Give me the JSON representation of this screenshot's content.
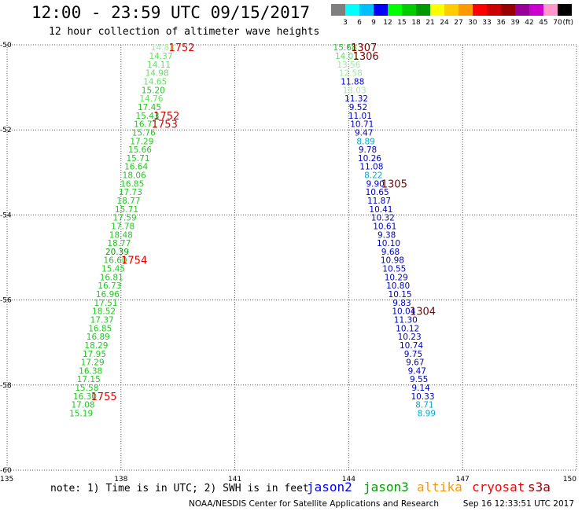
{
  "title": "12:00 - 23:59 UTC 09/15/2017",
  "subtitle": "12 hour collection of altimeter wave heights",
  "footer": {
    "note": "note: 1) Time is in UTC; 2) SWH is in feet",
    "credit": "NOAA/NESDIS Center for Satellite Applications and Research",
    "timestamp": "Sep 16 12:33:51 UTC 2017"
  },
  "colors": {
    "green_dark": "#00a000",
    "green_mid": "#22c822",
    "green_light": "#66e066",
    "green_pale": "#99ee99",
    "navy": "#0000c0",
    "cyan": "#00aacc",
    "time_red": "#e00000",
    "time_dark": "#800000"
  },
  "legend": {
    "unit": "(ft)",
    "bins": [
      {
        "label": "3",
        "color": "#7f7f7f"
      },
      {
        "label": "6",
        "color": "#00ffff"
      },
      {
        "label": "9",
        "color": "#00bfff"
      },
      {
        "label": "12",
        "color": "#0000ff"
      },
      {
        "label": "15",
        "color": "#00ff00"
      },
      {
        "label": "18",
        "color": "#00cc00"
      },
      {
        "label": "21",
        "color": "#009900"
      },
      {
        "label": "24",
        "color": "#ffff00"
      },
      {
        "label": "27",
        "color": "#ffcc00"
      },
      {
        "label": "30",
        "color": "#ff9900"
      },
      {
        "label": "33",
        "color": "#ff0000"
      },
      {
        "label": "36",
        "color": "#cc0000"
      },
      {
        "label": "39",
        "color": "#990000"
      },
      {
        "label": "42",
        "color": "#990099"
      },
      {
        "label": "45",
        "color": "#cc00cc"
      },
      {
        "label": "70",
        "color": "#ff99cc"
      },
      {
        "label": "",
        "color": "#000000"
      }
    ]
  },
  "satellites": [
    {
      "name": "jason2",
      "color": "#0000ff"
    },
    {
      "name": "jason3",
      "color": "#00a000"
    },
    {
      "name": "altika",
      "color": "#ff9900"
    },
    {
      "name": "cryosat",
      "color": "#ff0000"
    },
    {
      "name": "s3a",
      "color": "#990000"
    }
  ],
  "chart_data": {
    "type": "scatter",
    "xlim": [
      135,
      150
    ],
    "ylim": [
      -60,
      -50
    ],
    "x_ticks": [
      135,
      138,
      141,
      144,
      147,
      150
    ],
    "y_ticks": [
      -50,
      -52,
      -54,
      -56,
      -58,
      -60
    ],
    "grid": "dotted",
    "series": [
      {
        "satellite": "jason3",
        "points": [
          {
            "lat": -50.06,
            "lon": 139.1,
            "v": "14.88",
            "c": "green_pale"
          },
          {
            "lat": -50.26,
            "lon": 139.05,
            "v": "14.37",
            "c": "green_light"
          },
          {
            "lat": -50.46,
            "lon": 139.0,
            "v": "14.11",
            "c": "green_light"
          },
          {
            "lat": -50.66,
            "lon": 138.95,
            "v": "14.98",
            "c": "green_light"
          },
          {
            "lat": -50.86,
            "lon": 138.9,
            "v": "14.65",
            "c": "green_light"
          },
          {
            "lat": -51.06,
            "lon": 138.85,
            "v": "15.20",
            "c": "green_mid"
          },
          {
            "lat": -51.26,
            "lon": 138.8,
            "v": "14.76",
            "c": "green_light"
          },
          {
            "lat": -51.46,
            "lon": 138.75,
            "v": "17.45",
            "c": "green_mid"
          },
          {
            "lat": -51.66,
            "lon": 138.7,
            "v": "15.43",
            "c": "green_mid"
          },
          {
            "lat": -51.86,
            "lon": 138.65,
            "v": "16.71",
            "c": "green_mid"
          },
          {
            "lat": -52.06,
            "lon": 138.6,
            "v": "15.76",
            "c": "green_mid"
          },
          {
            "lat": -52.26,
            "lon": 138.55,
            "v": "17.29",
            "c": "green_mid"
          },
          {
            "lat": -52.46,
            "lon": 138.5,
            "v": "15.66",
            "c": "green_mid"
          },
          {
            "lat": -52.66,
            "lon": 138.45,
            "v": "15.71",
            "c": "green_mid"
          },
          {
            "lat": -52.86,
            "lon": 138.4,
            "v": "16.64",
            "c": "green_mid"
          },
          {
            "lat": -53.06,
            "lon": 138.35,
            "v": "18.06",
            "c": "green_mid"
          },
          {
            "lat": -53.26,
            "lon": 138.3,
            "v": "16.85",
            "c": "green_mid"
          },
          {
            "lat": -53.46,
            "lon": 138.25,
            "v": "17.73",
            "c": "green_mid"
          },
          {
            "lat": -53.66,
            "lon": 138.2,
            "v": "18.77",
            "c": "green_mid"
          },
          {
            "lat": -53.86,
            "lon": 138.15,
            "v": "15.71",
            "c": "green_mid"
          },
          {
            "lat": -54.06,
            "lon": 138.1,
            "v": "17.59",
            "c": "green_mid"
          },
          {
            "lat": -54.26,
            "lon": 138.05,
            "v": "17.78",
            "c": "green_mid"
          },
          {
            "lat": -54.46,
            "lon": 138.0,
            "v": "18.48",
            "c": "green_mid"
          },
          {
            "lat": -54.66,
            "lon": 137.95,
            "v": "18.77",
            "c": "green_mid"
          },
          {
            "lat": -54.86,
            "lon": 137.9,
            "v": "20.39",
            "c": "green_dark"
          },
          {
            "lat": -55.06,
            "lon": 137.85,
            "v": "16.60",
            "c": "green_mid"
          },
          {
            "lat": -55.26,
            "lon": 137.8,
            "v": "15.45",
            "c": "green_mid"
          },
          {
            "lat": -55.46,
            "lon": 137.75,
            "v": "16.81",
            "c": "green_mid"
          },
          {
            "lat": -55.66,
            "lon": 137.7,
            "v": "16.73",
            "c": "green_mid"
          },
          {
            "lat": -55.86,
            "lon": 137.65,
            "v": "16.96",
            "c": "green_mid"
          },
          {
            "lat": -56.06,
            "lon": 137.6,
            "v": "17.51",
            "c": "green_mid"
          },
          {
            "lat": -56.26,
            "lon": 137.55,
            "v": "18.52",
            "c": "green_mid"
          },
          {
            "lat": -56.46,
            "lon": 137.5,
            "v": "17.37",
            "c": "green_mid"
          },
          {
            "lat": -56.66,
            "lon": 137.45,
            "v": "16.85",
            "c": "green_mid"
          },
          {
            "lat": -56.86,
            "lon": 137.4,
            "v": "16.89",
            "c": "green_mid"
          },
          {
            "lat": -57.06,
            "lon": 137.35,
            "v": "18.29",
            "c": "green_mid"
          },
          {
            "lat": -57.26,
            "lon": 137.3,
            "v": "17.95",
            "c": "green_mid"
          },
          {
            "lat": -57.46,
            "lon": 137.25,
            "v": "17.29",
            "c": "green_mid"
          },
          {
            "lat": -57.66,
            "lon": 137.2,
            "v": "16.38",
            "c": "green_mid"
          },
          {
            "lat": -57.86,
            "lon": 137.15,
            "v": "17.15",
            "c": "green_mid"
          },
          {
            "lat": -58.06,
            "lon": 137.1,
            "v": "15.58",
            "c": "green_mid"
          },
          {
            "lat": -58.26,
            "lon": 137.05,
            "v": "16.30",
            "c": "green_mid"
          },
          {
            "lat": -58.46,
            "lon": 137.0,
            "v": "17.08",
            "c": "green_mid"
          },
          {
            "lat": -58.66,
            "lon": 136.95,
            "v": "15.19",
            "c": "green_mid"
          }
        ]
      },
      {
        "satellite": "jason2",
        "points": [
          {
            "lat": -50.06,
            "lon": 143.9,
            "v": "15.68",
            "c": "green_mid"
          },
          {
            "lat": -50.26,
            "lon": 143.95,
            "v": "14.01",
            "c": "green_light"
          },
          {
            "lat": -50.46,
            "lon": 144.0,
            "v": "13.56",
            "c": "green_pale"
          },
          {
            "lat": -50.66,
            "lon": 144.05,
            "v": "12.58",
            "c": "green_pale"
          },
          {
            "lat": -50.86,
            "lon": 144.1,
            "v": "11.88",
            "c": "navy"
          },
          {
            "lat": -51.06,
            "lon": 144.15,
            "v": "13.03",
            "c": "green_pale"
          },
          {
            "lat": -51.26,
            "lon": 144.2,
            "v": "11.32",
            "c": "navy"
          },
          {
            "lat": -51.46,
            "lon": 144.25,
            "v": "9.52",
            "c": "navy"
          },
          {
            "lat": -51.66,
            "lon": 144.3,
            "v": "11.01",
            "c": "navy"
          },
          {
            "lat": -51.86,
            "lon": 144.35,
            "v": "10.71",
            "c": "navy"
          },
          {
            "lat": -52.06,
            "lon": 144.4,
            "v": "9.47",
            "c": "navy"
          },
          {
            "lat": -52.26,
            "lon": 144.45,
            "v": "8.89",
            "c": "cyan"
          },
          {
            "lat": -52.46,
            "lon": 144.5,
            "v": "9.78",
            "c": "navy"
          },
          {
            "lat": -52.66,
            "lon": 144.55,
            "v": "10.26",
            "c": "navy"
          },
          {
            "lat": -52.86,
            "lon": 144.6,
            "v": "11.08",
            "c": "navy"
          },
          {
            "lat": -53.06,
            "lon": 144.65,
            "v": "8.22",
            "c": "cyan"
          },
          {
            "lat": -53.26,
            "lon": 144.7,
            "v": "9.90",
            "c": "navy"
          },
          {
            "lat": -53.46,
            "lon": 144.75,
            "v": "10.65",
            "c": "navy"
          },
          {
            "lat": -53.66,
            "lon": 144.8,
            "v": "11.87",
            "c": "navy"
          },
          {
            "lat": -53.86,
            "lon": 144.85,
            "v": "10.41",
            "c": "navy"
          },
          {
            "lat": -54.06,
            "lon": 144.9,
            "v": "10.32",
            "c": "navy"
          },
          {
            "lat": -54.26,
            "lon": 144.95,
            "v": "10.61",
            "c": "navy"
          },
          {
            "lat": -54.46,
            "lon": 145.0,
            "v": "9.38",
            "c": "navy"
          },
          {
            "lat": -54.66,
            "lon": 145.05,
            "v": "10.10",
            "c": "navy"
          },
          {
            "lat": -54.86,
            "lon": 145.1,
            "v": "9.68",
            "c": "navy"
          },
          {
            "lat": -55.06,
            "lon": 145.15,
            "v": "10.98",
            "c": "navy"
          },
          {
            "lat": -55.26,
            "lon": 145.2,
            "v": "10.55",
            "c": "navy"
          },
          {
            "lat": -55.46,
            "lon": 145.25,
            "v": "10.29",
            "c": "navy"
          },
          {
            "lat": -55.66,
            "lon": 145.3,
            "v": "10.80",
            "c": "navy"
          },
          {
            "lat": -55.86,
            "lon": 145.35,
            "v": "10.15",
            "c": "navy"
          },
          {
            "lat": -56.06,
            "lon": 145.4,
            "v": "9.83",
            "c": "navy"
          },
          {
            "lat": -56.26,
            "lon": 145.45,
            "v": "10.04",
            "c": "navy"
          },
          {
            "lat": -56.46,
            "lon": 145.5,
            "v": "11.30",
            "c": "navy"
          },
          {
            "lat": -56.66,
            "lon": 145.55,
            "v": "10.12",
            "c": "navy"
          },
          {
            "lat": -56.86,
            "lon": 145.6,
            "v": "10.23",
            "c": "navy"
          },
          {
            "lat": -57.06,
            "lon": 145.65,
            "v": "10.74",
            "c": "navy"
          },
          {
            "lat": -57.26,
            "lon": 145.7,
            "v": "9.75",
            "c": "navy"
          },
          {
            "lat": -57.46,
            "lon": 145.75,
            "v": "9.67",
            "c": "navy"
          },
          {
            "lat": -57.66,
            "lon": 145.8,
            "v": "9.47",
            "c": "navy"
          },
          {
            "lat": -57.86,
            "lon": 145.85,
            "v": "9.55",
            "c": "navy"
          },
          {
            "lat": -58.06,
            "lon": 145.9,
            "v": "9.14",
            "c": "navy"
          },
          {
            "lat": -58.26,
            "lon": 145.95,
            "v": "10.33",
            "c": "navy"
          },
          {
            "lat": -58.46,
            "lon": 146.0,
            "v": "8.71",
            "c": "cyan"
          },
          {
            "lat": -58.66,
            "lon": 146.05,
            "v": "8.99",
            "c": "cyan"
          }
        ]
      }
    ],
    "time_labels": [
      {
        "lat": -50.06,
        "lon": 139.6,
        "v": "1752",
        "c": "time_red"
      },
      {
        "lat": -51.66,
        "lon": 139.2,
        "v": "1752",
        "c": "time_red"
      },
      {
        "lat": -51.86,
        "lon": 139.15,
        "v": "1753",
        "c": "time_red"
      },
      {
        "lat": -55.06,
        "lon": 138.35,
        "v": "1754",
        "c": "time_red"
      },
      {
        "lat": -58.26,
        "lon": 137.55,
        "v": "1755",
        "c": "time_red"
      },
      {
        "lat": -50.06,
        "lon": 144.4,
        "v": "1307",
        "c": "time_dark"
      },
      {
        "lat": -50.26,
        "lon": 144.45,
        "v": "1306",
        "c": "time_dark"
      },
      {
        "lat": -53.26,
        "lon": 145.2,
        "v": "1305",
        "c": "time_dark"
      },
      {
        "lat": -56.26,
        "lon": 145.95,
        "v": "1304",
        "c": "time_dark"
      }
    ]
  }
}
